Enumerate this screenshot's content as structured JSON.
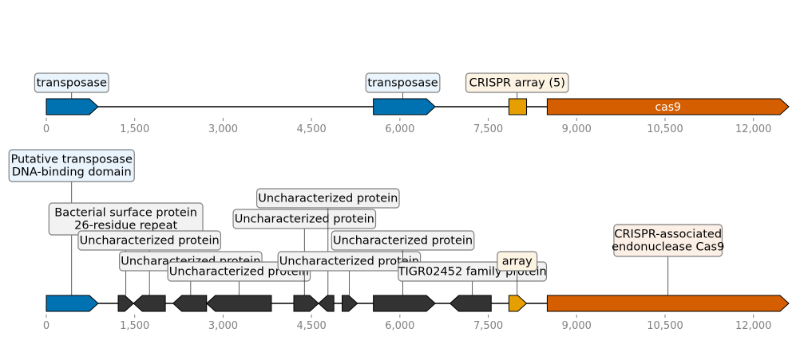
{
  "colors": {
    "transposase": "#0072b2",
    "cas9": "#d55e00",
    "crispr": "#e69f00",
    "uncharacterized": "#333333",
    "tick_label": "#808080",
    "label_blue_bg": "#eaf4fc",
    "label_crispr_bg": "#fdf3e3",
    "label_cas9_bg": "#fcefe6",
    "label_grey_bg": "#f2f2f2",
    "label_border": "#808080"
  },
  "axis": {
    "ticks": [
      0,
      1500,
      3000,
      4500,
      6000,
      7500,
      9000,
      10500,
      12000
    ],
    "tick_labels": [
      "0",
      "1,500",
      "3,000",
      "4,500",
      "6,000",
      "7,500",
      "9,000",
      "10,500",
      "12,000"
    ],
    "min": 0,
    "max": 12600
  },
  "tracks": [
    {
      "id": "summary",
      "features": [
        {
          "start": 0,
          "end": 880,
          "strand": 1,
          "color": "transposase",
          "label": "transposase",
          "inner": "",
          "label_bg": "label_blue_bg",
          "label_x": 430,
          "label_level": 0
        },
        {
          "start": 5550,
          "end": 6600,
          "strand": 1,
          "color": "transposase",
          "label": "transposase",
          "inner": "",
          "label_bg": "label_blue_bg",
          "label_x": 6050,
          "label_level": 0
        },
        {
          "start": 7850,
          "end": 8150,
          "strand": 0,
          "color": "crispr",
          "label": "CRISPR array (5)",
          "inner": "",
          "label_bg": "label_crispr_bg",
          "label_x": 7990,
          "label_level": 0
        },
        {
          "start": 8500,
          "end": 12600,
          "strand": 1,
          "color": "cas9",
          "label": "",
          "inner": "cas9",
          "label_bg": "label_cas9_bg",
          "label_x": 10550,
          "label_level": 0
        }
      ]
    },
    {
      "id": "detail",
      "features": [
        {
          "start": 0,
          "end": 880,
          "strand": 1,
          "color": "transposase",
          "label": "Putative transposase\nDNA-binding domain",
          "inner": "",
          "label_bg": "label_blue_bg",
          "label_x": 430,
          "label_level": 6
        },
        {
          "start": 1220,
          "end": 1480,
          "strand": 1,
          "color": "uncharacterized",
          "label": "Bacterial surface protein\n26-residue repeat",
          "inner": "",
          "label_bg": "label_grey_bg",
          "label_x": 1350,
          "label_level": 4
        },
        {
          "start": 1480,
          "end": 2020,
          "strand": -1,
          "color": "uncharacterized",
          "label": "Uncharacterized protein",
          "inner": "",
          "label_bg": "label_grey_bg",
          "label_x": 1750,
          "label_level": 3
        },
        {
          "start": 2150,
          "end": 2720,
          "strand": -1,
          "color": "uncharacterized",
          "label": "Uncharacterized protein",
          "inner": "",
          "label_bg": "label_grey_bg",
          "label_x": 2450,
          "label_level": 2
        },
        {
          "start": 2720,
          "end": 3820,
          "strand": -1,
          "color": "uncharacterized",
          "label": "Uncharacterized protein",
          "inner": "",
          "label_bg": "label_grey_bg",
          "label_x": 3270,
          "label_level": 1
        },
        {
          "start": 4200,
          "end": 4620,
          "strand": 1,
          "color": "uncharacterized",
          "label": "Uncharacterized protein",
          "inner": "",
          "label_bg": "label_grey_bg",
          "label_x": 4380,
          "label_level": 4
        },
        {
          "start": 4620,
          "end": 4880,
          "strand": -1,
          "color": "uncharacterized",
          "label": "Uncharacterized protein",
          "inner": "",
          "label_bg": "label_grey_bg",
          "label_x": 4780,
          "label_level": 5
        },
        {
          "start": 5020,
          "end": 5280,
          "strand": 1,
          "color": "uncharacterized",
          "label": "Uncharacterized protein",
          "inner": "",
          "label_bg": "label_grey_bg",
          "label_x": 5140,
          "label_level": 2
        },
        {
          "start": 5550,
          "end": 6600,
          "strand": 1,
          "color": "uncharacterized",
          "label": "Uncharacterized protein",
          "inner": "",
          "label_bg": "label_grey_bg",
          "label_x": 6050,
          "label_level": 3
        },
        {
          "start": 6850,
          "end": 7550,
          "strand": -1,
          "color": "uncharacterized",
          "label": "TIGR02452 family protein",
          "inner": "",
          "label_bg": "label_grey_bg",
          "label_x": 7230,
          "label_level": 1
        },
        {
          "start": 7850,
          "end": 8150,
          "strand": 1,
          "color": "crispr",
          "label": "array",
          "inner": "",
          "label_bg": "label_crispr_bg",
          "label_x": 7990,
          "label_level": 2
        },
        {
          "start": 8500,
          "end": 12600,
          "strand": 1,
          "color": "cas9",
          "label": "CRISPR-associated\nendonuclease Cas9",
          "inner": "",
          "label_bg": "label_cas9_bg",
          "label_x": 10550,
          "label_level": 3
        }
      ]
    }
  ]
}
